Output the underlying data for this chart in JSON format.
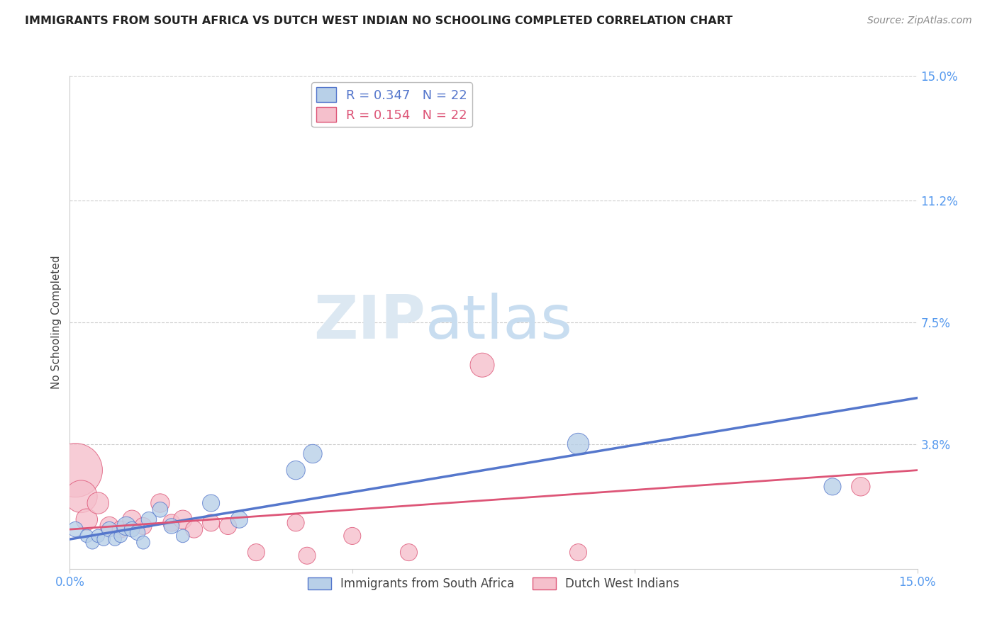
{
  "title": "IMMIGRANTS FROM SOUTH AFRICA VS DUTCH WEST INDIAN NO SCHOOLING COMPLETED CORRELATION CHART",
  "source": "Source: ZipAtlas.com",
  "ylabel": "No Schooling Completed",
  "xlim": [
    0.0,
    0.15
  ],
  "ylim": [
    0.0,
    0.15
  ],
  "xtick_positions": [
    0.0,
    0.05,
    0.1,
    0.15
  ],
  "xtick_labels": [
    "0.0%",
    "",
    "",
    "15.0%"
  ],
  "ytick_labels": [
    "3.8%",
    "7.5%",
    "11.2%",
    "15.0%"
  ],
  "ytick_positions": [
    0.038,
    0.075,
    0.112,
    0.15
  ],
  "watermark_zip": "ZIP",
  "watermark_atlas": "atlas",
  "legend_blue_r": "0.347",
  "legend_blue_n": "22",
  "legend_pink_r": "0.154",
  "legend_pink_n": "22",
  "blue_color": "#b8d0e8",
  "pink_color": "#f5c0cc",
  "line_blue": "#5577cc",
  "line_pink": "#dd5577",
  "blue_scatter_x": [
    0.001,
    0.003,
    0.004,
    0.005,
    0.006,
    0.007,
    0.008,
    0.009,
    0.01,
    0.011,
    0.012,
    0.013,
    0.014,
    0.016,
    0.018,
    0.02,
    0.025,
    0.03,
    0.04,
    0.043,
    0.09,
    0.135
  ],
  "blue_scatter_y": [
    0.012,
    0.01,
    0.008,
    0.01,
    0.009,
    0.012,
    0.009,
    0.01,
    0.013,
    0.012,
    0.011,
    0.008,
    0.015,
    0.018,
    0.013,
    0.01,
    0.02,
    0.015,
    0.03,
    0.035,
    0.038,
    0.025
  ],
  "blue_scatter_size": [
    20,
    15,
    15,
    15,
    15,
    20,
    15,
    15,
    30,
    20,
    20,
    15,
    20,
    20,
    20,
    15,
    25,
    25,
    30,
    30,
    40,
    25
  ],
  "pink_scatter_x": [
    0.001,
    0.002,
    0.003,
    0.005,
    0.007,
    0.009,
    0.011,
    0.013,
    0.016,
    0.018,
    0.02,
    0.022,
    0.025,
    0.028,
    0.033,
    0.04,
    0.042,
    0.05,
    0.06,
    0.073,
    0.09,
    0.14
  ],
  "pink_scatter_y": [
    0.03,
    0.022,
    0.015,
    0.02,
    0.013,
    0.012,
    0.015,
    0.013,
    0.02,
    0.014,
    0.015,
    0.012,
    0.014,
    0.013,
    0.005,
    0.014,
    0.004,
    0.01,
    0.005,
    0.062,
    0.005,
    0.025
  ],
  "pink_scatter_size": [
    250,
    90,
    40,
    40,
    30,
    25,
    30,
    25,
    30,
    25,
    30,
    25,
    25,
    25,
    25,
    25,
    25,
    25,
    25,
    50,
    25,
    30
  ],
  "blue_trend_x": [
    0.0,
    0.15
  ],
  "blue_trend_y": [
    0.009,
    0.052
  ],
  "pink_trend_x": [
    0.0,
    0.15
  ],
  "pink_trend_y": [
    0.012,
    0.03
  ],
  "grid_color": "#cccccc",
  "background_color": "#ffffff"
}
